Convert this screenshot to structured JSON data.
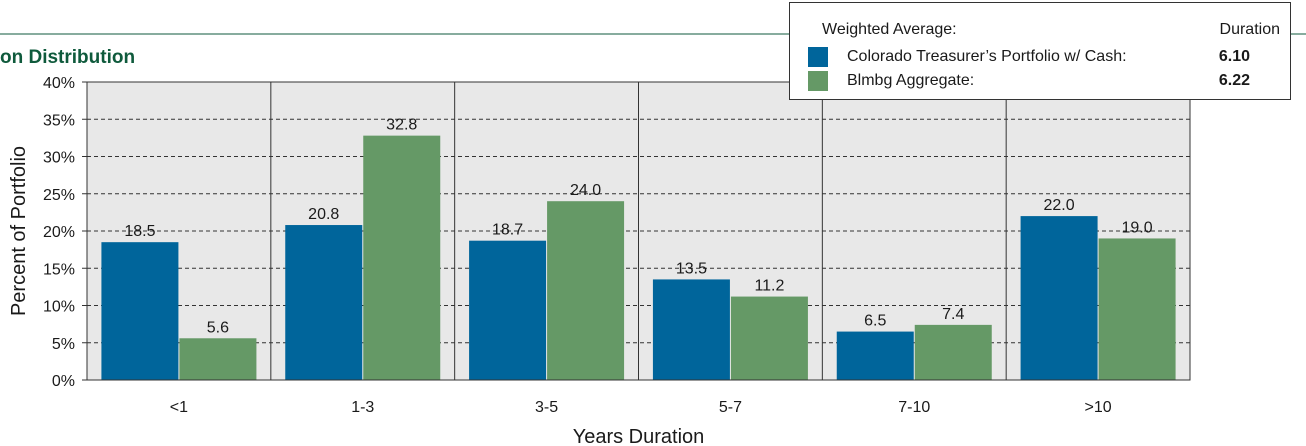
{
  "chart_data": {
    "type": "bar",
    "title": "on Distribution",
    "xlabel": "Years Duration",
    "ylabel": "Percent of Portfolio",
    "categories": [
      "<1",
      "1-3",
      "3-5",
      "5-7",
      "7-10",
      ">10"
    ],
    "ylim": [
      0,
      40
    ],
    "yticks": [
      "0%",
      "5%",
      "10%",
      "15%",
      "20%",
      "25%",
      "30%",
      "35%",
      "40%"
    ],
    "series": [
      {
        "name": "Colorado Treasurer’s Portfolio w/ Cash:",
        "color": "#00659b",
        "values": [
          18.5,
          20.8,
          18.7,
          13.5,
          6.5,
          22.0
        ],
        "labels": [
          "18.5",
          "20.8",
          "18.7",
          "13.5",
          "6.5",
          "22.0"
        ]
      },
      {
        "name": "Blmbg Aggregate:",
        "color": "#659966",
        "values": [
          5.6,
          32.8,
          24.0,
          11.2,
          7.4,
          19.0
        ],
        "labels": [
          "5.6",
          "32.8",
          "24.0",
          "11.2",
          "7.4",
          "19.0"
        ]
      }
    ],
    "grid": true,
    "gridlines": "horizontal-dashed",
    "legend_position": "top-right"
  },
  "legend": {
    "header_left": "Weighted Average:",
    "header_right": "Duration",
    "items": [
      {
        "label": "Colorado Treasurer’s Portfolio w/ Cash:",
        "value": "6.10",
        "color": "#00659b"
      },
      {
        "label": "Blmbg Aggregate:",
        "value": "6.22",
        "color": "#659966"
      }
    ]
  },
  "colors": {
    "title": "#0f5a3c",
    "plot_background": "#e8e8e8",
    "rule": "#0f5a3c"
  }
}
